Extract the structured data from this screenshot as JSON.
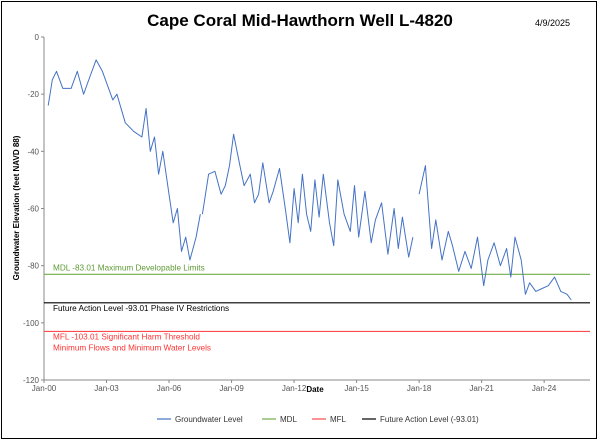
{
  "chart_data": {
    "type": "line",
    "title": "Cape Coral Mid-Hawthorn Well L-4820",
    "date_label": "4/9/2025",
    "xlabel": "Date",
    "ylabel": "Groundwater Elevation (feet NAVD 88)",
    "xlim": [
      2000.0,
      2026.2
    ],
    "ylim": [
      -120,
      0
    ],
    "x_ticks": [
      2000,
      2003,
      2006,
      2009,
      2012,
      2015,
      2018,
      2021,
      2024
    ],
    "x_tick_labels": [
      "Jan-00",
      "Jan-03",
      "Jan-06",
      "Jan-09",
      "Jan-12",
      "Jan-15",
      "Jan-18",
      "Jan-21",
      "Jan-24"
    ],
    "y_ticks": [
      0,
      -20,
      -40,
      -60,
      -80,
      -100,
      -120
    ],
    "y_tick_labels": [
      "0",
      "-20",
      "-40",
      "-60",
      "-80",
      "-100",
      "-120"
    ],
    "grid": false,
    "series": [
      {
        "name": "Groundwater Level",
        "color": "#4472C4",
        "x": [
          2000.2,
          2000.4,
          2000.6,
          2000.9,
          2001.3,
          2001.6,
          2001.9,
          2002.2,
          2002.5,
          2002.8,
          2003.0,
          2003.3,
          2003.5,
          2003.9,
          2004.3,
          2004.7,
          2004.9,
          2005.1,
          2005.3,
          2005.5,
          2005.7,
          2006.0,
          2006.2,
          2006.4,
          2006.6,
          2006.8,
          2007.0,
          2007.3,
          2007.5,
          2007.6,
          2007.9,
          2008.2,
          2008.5,
          2008.7,
          2008.9,
          2009.1,
          2009.4,
          2009.6,
          2009.9,
          2010.1,
          2010.3,
          2010.5,
          2010.8,
          2011.0,
          2011.3,
          2011.6,
          2011.8,
          2012.0,
          2012.2,
          2012.4,
          2012.6,
          2012.8,
          2013.0,
          2013.2,
          2013.4,
          2013.7,
          2013.9,
          2014.1,
          2014.4,
          2014.7,
          2014.9,
          2015.1,
          2015.4,
          2015.7,
          2015.9,
          2016.2,
          2016.5,
          2016.8,
          2017.0,
          2017.2,
          2017.5,
          2017.7,
          2018.0,
          2018.3,
          2018.6,
          2018.8,
          2019.1,
          2019.4,
          2019.6,
          2019.9,
          2020.2,
          2020.5,
          2020.8,
          2021.1,
          2021.3,
          2021.6,
          2021.9,
          2022.2,
          2022.4,
          2022.6,
          2022.9,
          2023.1,
          2023.3,
          2023.6,
          2023.9,
          2024.2,
          2024.5,
          2024.8,
          2025.1,
          2025.3
        ],
        "y": [
          -24,
          -15,
          -12,
          -18,
          -18,
          -12,
          -20,
          -14,
          -8,
          -12,
          -16,
          -22,
          -20,
          -30,
          -33,
          -35,
          -25,
          -40,
          -35,
          -48,
          -40,
          -55,
          -65,
          -60,
          -75,
          -70,
          -78,
          -70,
          -62,
          -62,
          -48,
          -47,
          -55,
          -52,
          -45,
          -34,
          -45,
          -52,
          -48,
          -58,
          -55,
          -44,
          -58,
          -54,
          -46,
          -61,
          -72,
          -53,
          -65,
          -48,
          -62,
          -68,
          -50,
          -63,
          -48,
          -65,
          -73,
          -50,
          -62,
          -68,
          -52,
          -70,
          -54,
          -72,
          -64,
          -58,
          -76,
          -60,
          -74,
          -63,
          -77,
          -70,
          -55,
          -45,
          -74,
          -64,
          -78,
          -68,
          -73,
          -82,
          -75,
          -81,
          -70,
          -87,
          -78,
          -72,
          -80,
          -74,
          -84,
          -70,
          -78,
          -90,
          -86,
          -89,
          -88,
          -87,
          -84,
          -89,
          -90,
          -92
        ],
        "gaps_after_index": [
          28,
          71
        ]
      },
      {
        "name": "MDL",
        "color": "#70AD47",
        "value": -83.01
      },
      {
        "name": "MFL",
        "color": "#FF4B4B",
        "value": -103.01
      },
      {
        "name": "Future Action Level  (-93.01)",
        "color": "#000000",
        "value": -93.01
      }
    ],
    "annotations": [
      {
        "text": "MDL  -83.01  Maximum Developable Limits",
        "color": "#5E9A35",
        "anchor_value": -83.01
      },
      {
        "text": "Future Action Level  -93.01  Phase IV Restrictions",
        "color": "#000000",
        "anchor_value": -93.01
      },
      {
        "text": "MFL  -103.01  Significant Harm Threshold",
        "color": "#FF3333",
        "anchor_value": -103.01
      },
      {
        "text": "Minimum Flows and Minimum Water Levels",
        "color": "#FF3333",
        "anchor_value": -103.01
      }
    ],
    "legend": {
      "placement": "bottom",
      "entries": [
        "Groundwater Level",
        "MDL",
        "MFL",
        "Future Action Level  (-93.01)"
      ]
    }
  }
}
